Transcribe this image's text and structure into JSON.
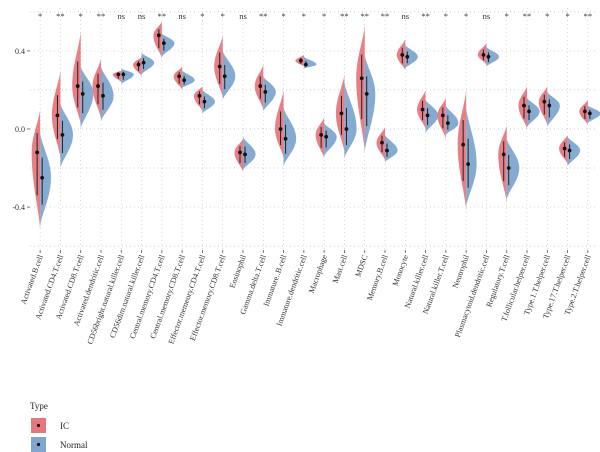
{
  "chart_data": {
    "type": "split-violin",
    "title": "",
    "xlabel": "",
    "ylabel": "",
    "ylim": [
      -0.62,
      0.62
    ],
    "yticks": [
      -0.4,
      0.0,
      0.4
    ],
    "ytick_labels": [
      "-0.4",
      "0.0",
      "0.4"
    ],
    "grid": "dotted",
    "legend": {
      "title": "Type",
      "placement": "bottom-left",
      "entries": [
        {
          "name": "IC",
          "color": "#e7787f"
        },
        {
          "name": "Normal",
          "color": "#7fa6cf"
        }
      ]
    },
    "colors": {
      "IC": "#e7787f",
      "Normal": "#7fa6cf",
      "point": "#111111"
    },
    "series_names": [
      "IC",
      "Normal"
    ],
    "categories": [
      "Activated.B.cell",
      "Activated.CD4.T.cell",
      "Activated.CD8.T.cell",
      "Activated.dendritic.cell",
      "CD56bright.natural.killer.cell",
      "CD56dim.natural.killer.cell",
      "Central.memory.CD4.T.cell",
      "Central.memory.CD8.T.cell",
      "Effector.memeory.CD4.T.cell",
      "Effector.memory.CD8.T.cell",
      "Eosinophil",
      "Gamma.delta.T.cell",
      "Immature..B.cell",
      "Immature.dendritic.cell",
      "Macrophage",
      "Mast.cell",
      "MDSC",
      "Memory.B.cell",
      "Monocyte",
      "Natural.killer.cell",
      "Natural.killer.T.cell",
      "Neutrophil",
      "Plasmacytoid.dendritic.cell",
      "Regulatory.T.cell",
      "T.follicular.helper.cell",
      "Type.1.T.helper.cell",
      "Type.17.T.helper.cell",
      "Type.2.T.helper.cell"
    ],
    "significance": [
      "*",
      "**",
      "*",
      "**",
      "ns",
      "ns",
      "**",
      "ns",
      "*",
      "*",
      "ns",
      "**",
      "*",
      "*",
      "*",
      "**",
      "**",
      "**",
      "ns",
      "**",
      "*",
      "*",
      "ns",
      "*",
      "**",
      "*",
      "*",
      "**"
    ],
    "ic": {
      "median": [
        -0.12,
        0.07,
        0.22,
        0.22,
        0.28,
        0.33,
        0.48,
        0.27,
        0.17,
        0.32,
        -0.12,
        0.22,
        0.0,
        0.35,
        -0.03,
        0.08,
        0.26,
        -0.07,
        0.38,
        0.1,
        0.07,
        -0.08,
        0.38,
        -0.13,
        0.12,
        0.14,
        -0.1,
        0.09
      ],
      "low": [
        -0.52,
        -0.15,
        0.02,
        0.05,
        0.24,
        0.27,
        0.36,
        0.2,
        0.09,
        0.16,
        -0.22,
        0.1,
        -0.15,
        0.32,
        -0.15,
        -0.12,
        -0.12,
        -0.16,
        0.3,
        0.0,
        -0.05,
        -0.42,
        0.33,
        -0.38,
        0.0,
        0.02,
        -0.18,
        0.02
      ],
      "high": [
        0.1,
        0.3,
        0.5,
        0.36,
        0.3,
        0.37,
        0.55,
        0.32,
        0.22,
        0.48,
        -0.05,
        0.33,
        0.2,
        0.38,
        0.06,
        0.28,
        0.53,
        0.01,
        0.46,
        0.2,
        0.16,
        0.2,
        0.44,
        0.02,
        0.22,
        0.22,
        -0.03,
        0.15
      ]
    },
    "normal": {
      "median": [
        -0.25,
        -0.03,
        0.18,
        0.17,
        0.28,
        0.34,
        0.44,
        0.25,
        0.14,
        0.27,
        -0.13,
        0.19,
        -0.05,
        0.33,
        -0.04,
        0.0,
        0.18,
        -0.11,
        0.37,
        0.07,
        0.03,
        -0.18,
        0.37,
        -0.2,
        0.09,
        0.12,
        -0.11,
        0.08
      ],
      "low": [
        -0.5,
        -0.2,
        0.0,
        0.04,
        0.23,
        0.28,
        0.37,
        0.21,
        0.08,
        0.15,
        -0.21,
        0.09,
        -0.19,
        0.31,
        -0.14,
        -0.15,
        -0.12,
        -0.17,
        0.31,
        -0.02,
        -0.03,
        -0.4,
        0.32,
        -0.36,
        0.01,
        0.01,
        -0.19,
        0.03
      ],
      "high": [
        -0.02,
        0.13,
        0.32,
        0.32,
        0.31,
        0.39,
        0.49,
        0.3,
        0.2,
        0.4,
        -0.04,
        0.27,
        0.11,
        0.37,
        0.03,
        0.24,
        0.38,
        -0.03,
        0.43,
        0.15,
        0.12,
        0.11,
        0.42,
        -0.05,
        0.16,
        0.19,
        -0.04,
        0.12
      ]
    }
  }
}
